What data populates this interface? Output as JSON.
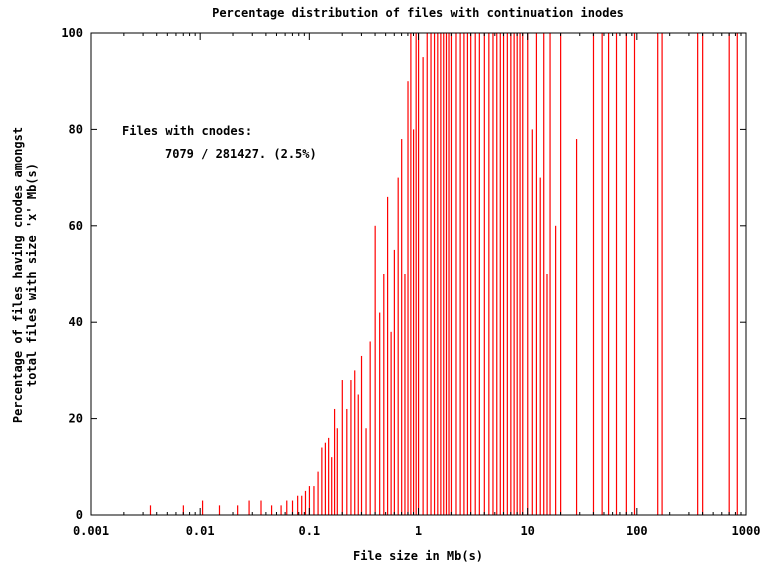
{
  "chart_data": {
    "type": "bar",
    "title": "Percentage distribution of files with continuation inodes",
    "xlabel": "File size in Mb(s)",
    "ylabel": [
      "Percentage of files having cnodes amongst",
      "total files with size 'x' Mb(s)"
    ],
    "xscale": "log",
    "xlim": [
      0.001,
      1000
    ],
    "ylim": [
      0,
      100
    ],
    "grid": false,
    "legend": "none",
    "bar_color": "#ff0000",
    "x_ticks": [
      {
        "value": 0.001,
        "label": "0.001"
      },
      {
        "value": 0.01,
        "label": "0.01"
      },
      {
        "value": 0.1,
        "label": "0.1"
      },
      {
        "value": 1,
        "label": "1"
      },
      {
        "value": 10,
        "label": "10"
      },
      {
        "value": 100,
        "label": "100"
      },
      {
        "value": 1000,
        "label": "1000"
      }
    ],
    "y_ticks": [
      {
        "value": 0,
        "label": "0"
      },
      {
        "value": 20,
        "label": "20"
      },
      {
        "value": 40,
        "label": "40"
      },
      {
        "value": 60,
        "label": "60"
      },
      {
        "value": 80,
        "label": "80"
      },
      {
        "value": 100,
        "label": "100"
      }
    ],
    "annotations": [
      "Files with cnodes:",
      "7079 / 281427. (2.5%)"
    ],
    "x": [
      0.0035,
      0.007,
      0.0105,
      0.015,
      0.022,
      0.028,
      0.036,
      0.045,
      0.055,
      0.062,
      0.07,
      0.078,
      0.085,
      0.092,
      0.1,
      0.11,
      0.12,
      0.13,
      0.14,
      0.15,
      0.16,
      0.17,
      0.18,
      0.2,
      0.22,
      0.24,
      0.26,
      0.28,
      0.3,
      0.33,
      0.36,
      0.4,
      0.44,
      0.48,
      0.52,
      0.56,
      0.6,
      0.65,
      0.7,
      0.75,
      0.8,
      0.85,
      0.9,
      0.95,
      1.0,
      1.1,
      1.2,
      1.3,
      1.4,
      1.5,
      1.6,
      1.7,
      1.8,
      1.9,
      2.0,
      2.2,
      2.4,
      2.6,
      2.8,
      3.0,
      3.3,
      3.6,
      4.0,
      4.4,
      4.8,
      5.2,
      5.6,
      6.0,
      6.5,
      7.0,
      7.5,
      8.0,
      8.5,
      9.0,
      10.0,
      11.0,
      12.0,
      13.0,
      14.0,
      15.0,
      16.0,
      18.0,
      20.0,
      28.0,
      40.0,
      48.0,
      55.0,
      65.0,
      80.0,
      95.0,
      155.0,
      170.0,
      360.0,
      400.0,
      700.0,
      830.0
    ],
    "values": [
      2,
      2,
      3,
      2,
      2,
      3,
      3,
      2,
      2,
      3,
      3,
      4,
      4,
      5,
      6,
      6,
      9,
      14,
      15,
      16,
      12,
      22,
      18,
      28,
      22,
      28,
      30,
      25,
      33,
      18,
      36,
      60,
      42,
      50,
      66,
      38,
      55,
      70,
      78,
      50,
      90,
      100,
      80,
      100,
      100,
      95,
      100,
      100,
      100,
      100,
      100,
      100,
      100,
      100,
      100,
      100,
      100,
      100,
      100,
      100,
      100,
      100,
      100,
      100,
      100,
      100,
      100,
      100,
      100,
      100,
      100,
      100,
      100,
      100,
      100,
      80,
      100,
      70,
      100,
      50,
      100,
      60,
      100,
      78,
      100,
      100,
      100,
      100,
      100,
      100,
      100,
      100,
      100,
      100,
      100,
      100
    ]
  }
}
